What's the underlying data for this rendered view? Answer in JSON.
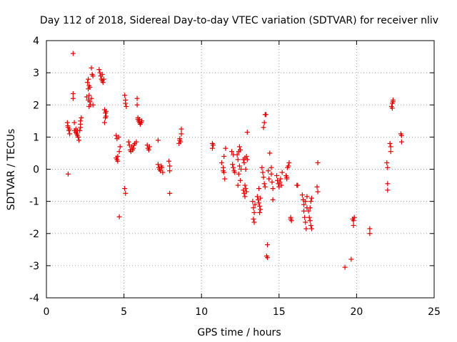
{
  "chart_data": {
    "type": "scatter",
    "title": "Day 112 of 2018, Sidereal Day-to-day VTEC variation (SDTVAR) for receiver nliv",
    "xlabel": "GPS time / hours",
    "ylabel": "SDTVAR / TECUs",
    "xlim": [
      0,
      25
    ],
    "ylim": [
      -4,
      4
    ],
    "xticks": [
      0,
      5,
      10,
      15,
      20,
      25
    ],
    "yticks": [
      -4,
      -3,
      -2,
      -1,
      0,
      1,
      2,
      3,
      4
    ],
    "grid": true,
    "marker": "+",
    "color": "#e00000",
    "series": [
      {
        "name": "SDTVAR",
        "points": [
          [
            1.35,
            1.45
          ],
          [
            1.4,
            1.3
          ],
          [
            1.45,
            1.2
          ],
          [
            1.5,
            1.1
          ],
          [
            1.4,
            -0.15
          ],
          [
            1.38,
            1.35
          ],
          [
            1.48,
            1.25
          ],
          [
            1.72,
            3.6
          ],
          [
            1.72,
            2.35
          ],
          [
            1.72,
            2.2
          ],
          [
            1.8,
            1.45
          ],
          [
            1.82,
            1.2
          ],
          [
            1.9,
            1.15
          ],
          [
            1.95,
            1.1
          ],
          [
            2.0,
            1.05
          ],
          [
            2.05,
            1.0
          ],
          [
            2.1,
            0.9
          ],
          [
            2.0,
            1.2
          ],
          [
            1.9,
            1.25
          ],
          [
            2.2,
            1.4
          ],
          [
            2.2,
            1.3
          ],
          [
            2.2,
            1.5
          ],
          [
            2.25,
            1.6
          ],
          [
            2.15,
            1.2
          ],
          [
            2.6,
            2.25
          ],
          [
            2.65,
            2.7
          ],
          [
            2.7,
            2.8
          ],
          [
            2.7,
            2.5
          ],
          [
            2.75,
            2.6
          ],
          [
            2.75,
            2.3
          ],
          [
            2.7,
            2.15
          ],
          [
            2.8,
            2.1
          ],
          [
            2.85,
            2.0
          ],
          [
            2.75,
            1.95
          ],
          [
            2.8,
            2.55
          ],
          [
            2.9,
            3.15
          ],
          [
            2.95,
            2.95
          ],
          [
            3.0,
            2.9
          ],
          [
            3.0,
            2.0
          ],
          [
            2.9,
            2.2
          ],
          [
            3.4,
            3.1
          ],
          [
            3.45,
            3.0
          ],
          [
            3.5,
            2.9
          ],
          [
            3.55,
            2.8
          ],
          [
            3.6,
            2.75
          ],
          [
            3.65,
            2.7
          ],
          [
            3.6,
            2.95
          ],
          [
            3.7,
            2.8
          ],
          [
            3.75,
            1.85
          ],
          [
            3.8,
            1.75
          ],
          [
            3.85,
            1.65
          ],
          [
            3.75,
            1.45
          ],
          [
            3.8,
            1.6
          ],
          [
            3.85,
            1.8
          ],
          [
            4.5,
            1.05
          ],
          [
            4.55,
            0.95
          ],
          [
            4.5,
            0.35
          ],
          [
            4.55,
            0.3
          ],
          [
            4.6,
            0.25
          ],
          [
            4.6,
            0.4
          ],
          [
            4.7,
            0.55
          ],
          [
            4.75,
            0.7
          ],
          [
            4.65,
            1.0
          ],
          [
            4.7,
            -1.48
          ],
          [
            5.05,
            2.3
          ],
          [
            5.1,
            2.15
          ],
          [
            5.1,
            2.05
          ],
          [
            5.15,
            1.95
          ],
          [
            5.05,
            -0.6
          ],
          [
            5.1,
            -0.75
          ],
          [
            5.3,
            0.85
          ],
          [
            5.35,
            0.75
          ],
          [
            5.4,
            0.6
          ],
          [
            5.45,
            0.55
          ],
          [
            5.5,
            0.7
          ],
          [
            5.6,
            0.65
          ],
          [
            5.7,
            0.8
          ],
          [
            5.8,
            0.85
          ],
          [
            5.65,
            0.75
          ],
          [
            5.55,
            0.6
          ],
          [
            5.85,
            2.2
          ],
          [
            5.85,
            2.0
          ],
          [
            5.9,
            1.55
          ],
          [
            5.95,
            1.5
          ],
          [
            6.0,
            1.45
          ],
          [
            6.05,
            1.4
          ],
          [
            6.1,
            1.45
          ],
          [
            6.15,
            1.5
          ],
          [
            5.9,
            1.6
          ],
          [
            6.0,
            1.55
          ],
          [
            6.5,
            0.75
          ],
          [
            6.55,
            0.65
          ],
          [
            6.6,
            0.6
          ],
          [
            6.65,
            0.7
          ],
          [
            7.2,
            0.9
          ],
          [
            7.2,
            0.15
          ],
          [
            7.25,
            0.05
          ],
          [
            7.3,
            0.0
          ],
          [
            7.35,
            -0.05
          ],
          [
            7.4,
            0.1
          ],
          [
            7.5,
            -0.1
          ],
          [
            7.45,
            0.05
          ],
          [
            7.9,
            0.25
          ],
          [
            7.95,
            0.1
          ],
          [
            7.95,
            -0.05
          ],
          [
            7.95,
            -0.75
          ],
          [
            8.55,
            0.8
          ],
          [
            8.6,
            0.9
          ],
          [
            8.65,
            0.85
          ],
          [
            8.7,
            1.1
          ],
          [
            8.7,
            1.25
          ],
          [
            8.6,
            0.95
          ],
          [
            10.7,
            0.8
          ],
          [
            10.7,
            0.65
          ],
          [
            10.75,
            0.75
          ],
          [
            11.3,
            0.2
          ],
          [
            11.4,
            0.05
          ],
          [
            11.45,
            -0.1
          ],
          [
            11.5,
            -0.3
          ],
          [
            11.45,
            0.4
          ],
          [
            11.55,
            0.65
          ],
          [
            11.4,
            -0.05
          ],
          [
            11.95,
            0.55
          ],
          [
            12.0,
            0.15
          ],
          [
            12.05,
            0.05
          ],
          [
            12.1,
            -0.05
          ],
          [
            12.15,
            -0.1
          ],
          [
            12.05,
            0.45
          ],
          [
            12.3,
            0.45
          ],
          [
            12.35,
            0.3
          ],
          [
            12.4,
            0.55
          ],
          [
            12.45,
            0.7
          ],
          [
            12.5,
            0.6
          ],
          [
            12.45,
            0.1
          ],
          [
            12.4,
            -0.15
          ],
          [
            12.5,
            -0.35
          ],
          [
            12.55,
            0.0
          ],
          [
            12.35,
            -0.5
          ],
          [
            12.7,
            0.3
          ],
          [
            12.75,
            0.2
          ],
          [
            12.8,
            0.35
          ],
          [
            12.9,
            0.4
          ],
          [
            12.95,
            0.3
          ],
          [
            12.85,
            0.0
          ],
          [
            12.95,
            1.15
          ],
          [
            12.7,
            -0.65
          ],
          [
            12.75,
            -0.75
          ],
          [
            12.8,
            -0.85
          ],
          [
            12.85,
            -0.6
          ],
          [
            12.9,
            -0.7
          ],
          [
            12.8,
            -0.5
          ],
          [
            13.3,
            -1.0
          ],
          [
            13.35,
            -1.2
          ],
          [
            13.4,
            -1.35
          ],
          [
            13.35,
            -1.55
          ],
          [
            13.4,
            -1.65
          ],
          [
            13.45,
            -1.1
          ],
          [
            13.6,
            -0.85
          ],
          [
            13.65,
            -0.95
          ],
          [
            13.7,
            -1.05
          ],
          [
            13.75,
            -1.15
          ],
          [
            13.8,
            -1.25
          ],
          [
            13.7,
            -0.6
          ],
          [
            13.75,
            -1.35
          ],
          [
            13.8,
            -0.9
          ],
          [
            13.9,
            0.05
          ],
          [
            13.95,
            -0.1
          ],
          [
            14.0,
            -0.25
          ],
          [
            14.05,
            -0.45
          ],
          [
            14.1,
            -0.55
          ],
          [
            14.0,
            1.3
          ],
          [
            14.05,
            1.45
          ],
          [
            14.1,
            1.7
          ],
          [
            14.15,
            1.7
          ],
          [
            14.2,
            -2.7
          ],
          [
            14.25,
            -2.75
          ],
          [
            14.25,
            -2.35
          ],
          [
            14.3,
            -0.05
          ],
          [
            14.35,
            -0.3
          ],
          [
            14.4,
            0.5
          ],
          [
            14.5,
            0.05
          ],
          [
            14.5,
            -0.15
          ],
          [
            14.55,
            -0.4
          ],
          [
            14.6,
            -0.6
          ],
          [
            14.6,
            -0.95
          ],
          [
            14.85,
            -0.2
          ],
          [
            14.9,
            -0.35
          ],
          [
            14.95,
            -0.45
          ],
          [
            15.0,
            -0.55
          ],
          [
            15.05,
            -0.4
          ],
          [
            15.1,
            -0.3
          ],
          [
            15.15,
            -0.5
          ],
          [
            15.2,
            -0.1
          ],
          [
            15.45,
            -0.2
          ],
          [
            15.5,
            -0.25
          ],
          [
            15.55,
            0.05
          ],
          [
            15.6,
            0.1
          ],
          [
            15.65,
            0.2
          ],
          [
            15.5,
            -0.3
          ],
          [
            15.75,
            -1.55
          ],
          [
            15.8,
            -1.6
          ],
          [
            15.75,
            -1.5
          ],
          [
            16.15,
            -0.5
          ],
          [
            16.2,
            -0.5
          ],
          [
            16.5,
            -0.8
          ],
          [
            16.55,
            -0.95
          ],
          [
            16.6,
            -1.1
          ],
          [
            16.6,
            -1.3
          ],
          [
            16.65,
            -1.5
          ],
          [
            16.7,
            -1.65
          ],
          [
            16.75,
            -1.85
          ],
          [
            16.8,
            -1.2
          ],
          [
            16.7,
            -1.0
          ],
          [
            16.8,
            -0.85
          ],
          [
            16.9,
            -1.3
          ],
          [
            16.95,
            -1.5
          ],
          [
            17.0,
            -1.6
          ],
          [
            17.05,
            -1.75
          ],
          [
            17.1,
            -1.85
          ],
          [
            17.05,
            -1.0
          ],
          [
            17.1,
            -0.9
          ],
          [
            17.0,
            -1.2
          ],
          [
            17.45,
            -0.55
          ],
          [
            17.5,
            -0.7
          ],
          [
            17.5,
            0.2
          ],
          [
            19.25,
            -3.05
          ],
          [
            19.65,
            -2.8
          ],
          [
            19.75,
            -1.55
          ],
          [
            19.8,
            -1.75
          ],
          [
            19.8,
            -1.6
          ],
          [
            19.85,
            -1.5
          ],
          [
            20.85,
            -1.85
          ],
          [
            20.85,
            -2.0
          ],
          [
            21.95,
            0.2
          ],
          [
            22.0,
            0.05
          ],
          [
            22.0,
            -0.45
          ],
          [
            22.0,
            -0.65
          ],
          [
            22.15,
            0.8
          ],
          [
            22.2,
            0.7
          ],
          [
            22.2,
            0.55
          ],
          [
            22.25,
            1.95
          ],
          [
            22.3,
            2.05
          ],
          [
            22.35,
            2.15
          ],
          [
            22.3,
            1.9
          ],
          [
            22.35,
            2.1
          ],
          [
            22.85,
            1.1
          ],
          [
            22.9,
            1.05
          ],
          [
            22.9,
            0.85
          ]
        ]
      }
    ]
  }
}
